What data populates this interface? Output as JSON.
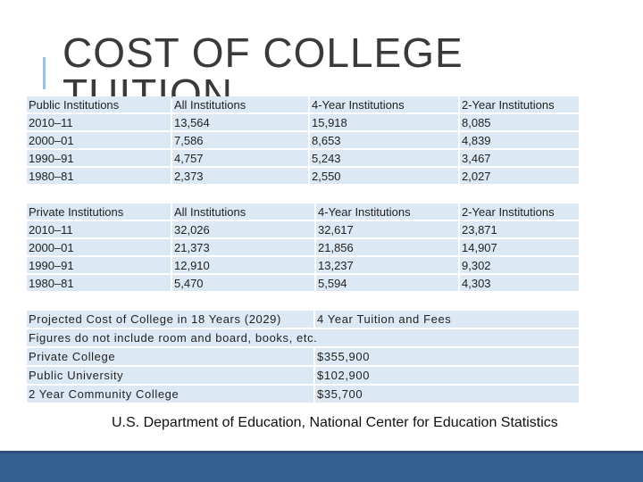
{
  "title": "COST OF COLLEGE TUITION",
  "tables": [
    {
      "rows": [
        [
          "Public Institutions",
          "All Institutions",
          "4-Year Institutions",
          "2-Year Institutions"
        ],
        [
          "2010–11",
          "13,564",
          "15,918",
          "8,085"
        ],
        [
          "2000–01",
          "7,586",
          "8,653",
          "4,839"
        ],
        [
          "1990–91",
          "4,757",
          "5,243",
          "3,467"
        ],
        [
          "1980–81",
          "2,373",
          "2,550",
          "2,027"
        ]
      ]
    },
    {
      "rows": [
        [
          "Private Institutions",
          "All Institutions",
          "4-Year Institutions",
          "2-Year Institutions"
        ],
        [
          "2010–11",
          "32,026",
          "32,617",
          "23,871"
        ],
        [
          "2000–01",
          "21,373",
          "21,856",
          "14,907"
        ],
        [
          "1990–91",
          "12,910",
          "13,237",
          "9,302"
        ],
        [
          "1980–81",
          "5,470",
          "5,594",
          "4,303"
        ]
      ]
    },
    {
      "rows": [
        [
          "Projected Cost of College in 18 Years (2029)",
          "4 Year Tuition and Fees"
        ],
        [
          "Figures do not include room and board, books, etc."
        ],
        [
          "Private College",
          "$355,900"
        ],
        [
          "Public University",
          "$102,900"
        ],
        [
          "2 Year Community College",
          "$35,700"
        ]
      ]
    }
  ],
  "source": "U.S. Department of Education, National Center for Education Statistics"
}
